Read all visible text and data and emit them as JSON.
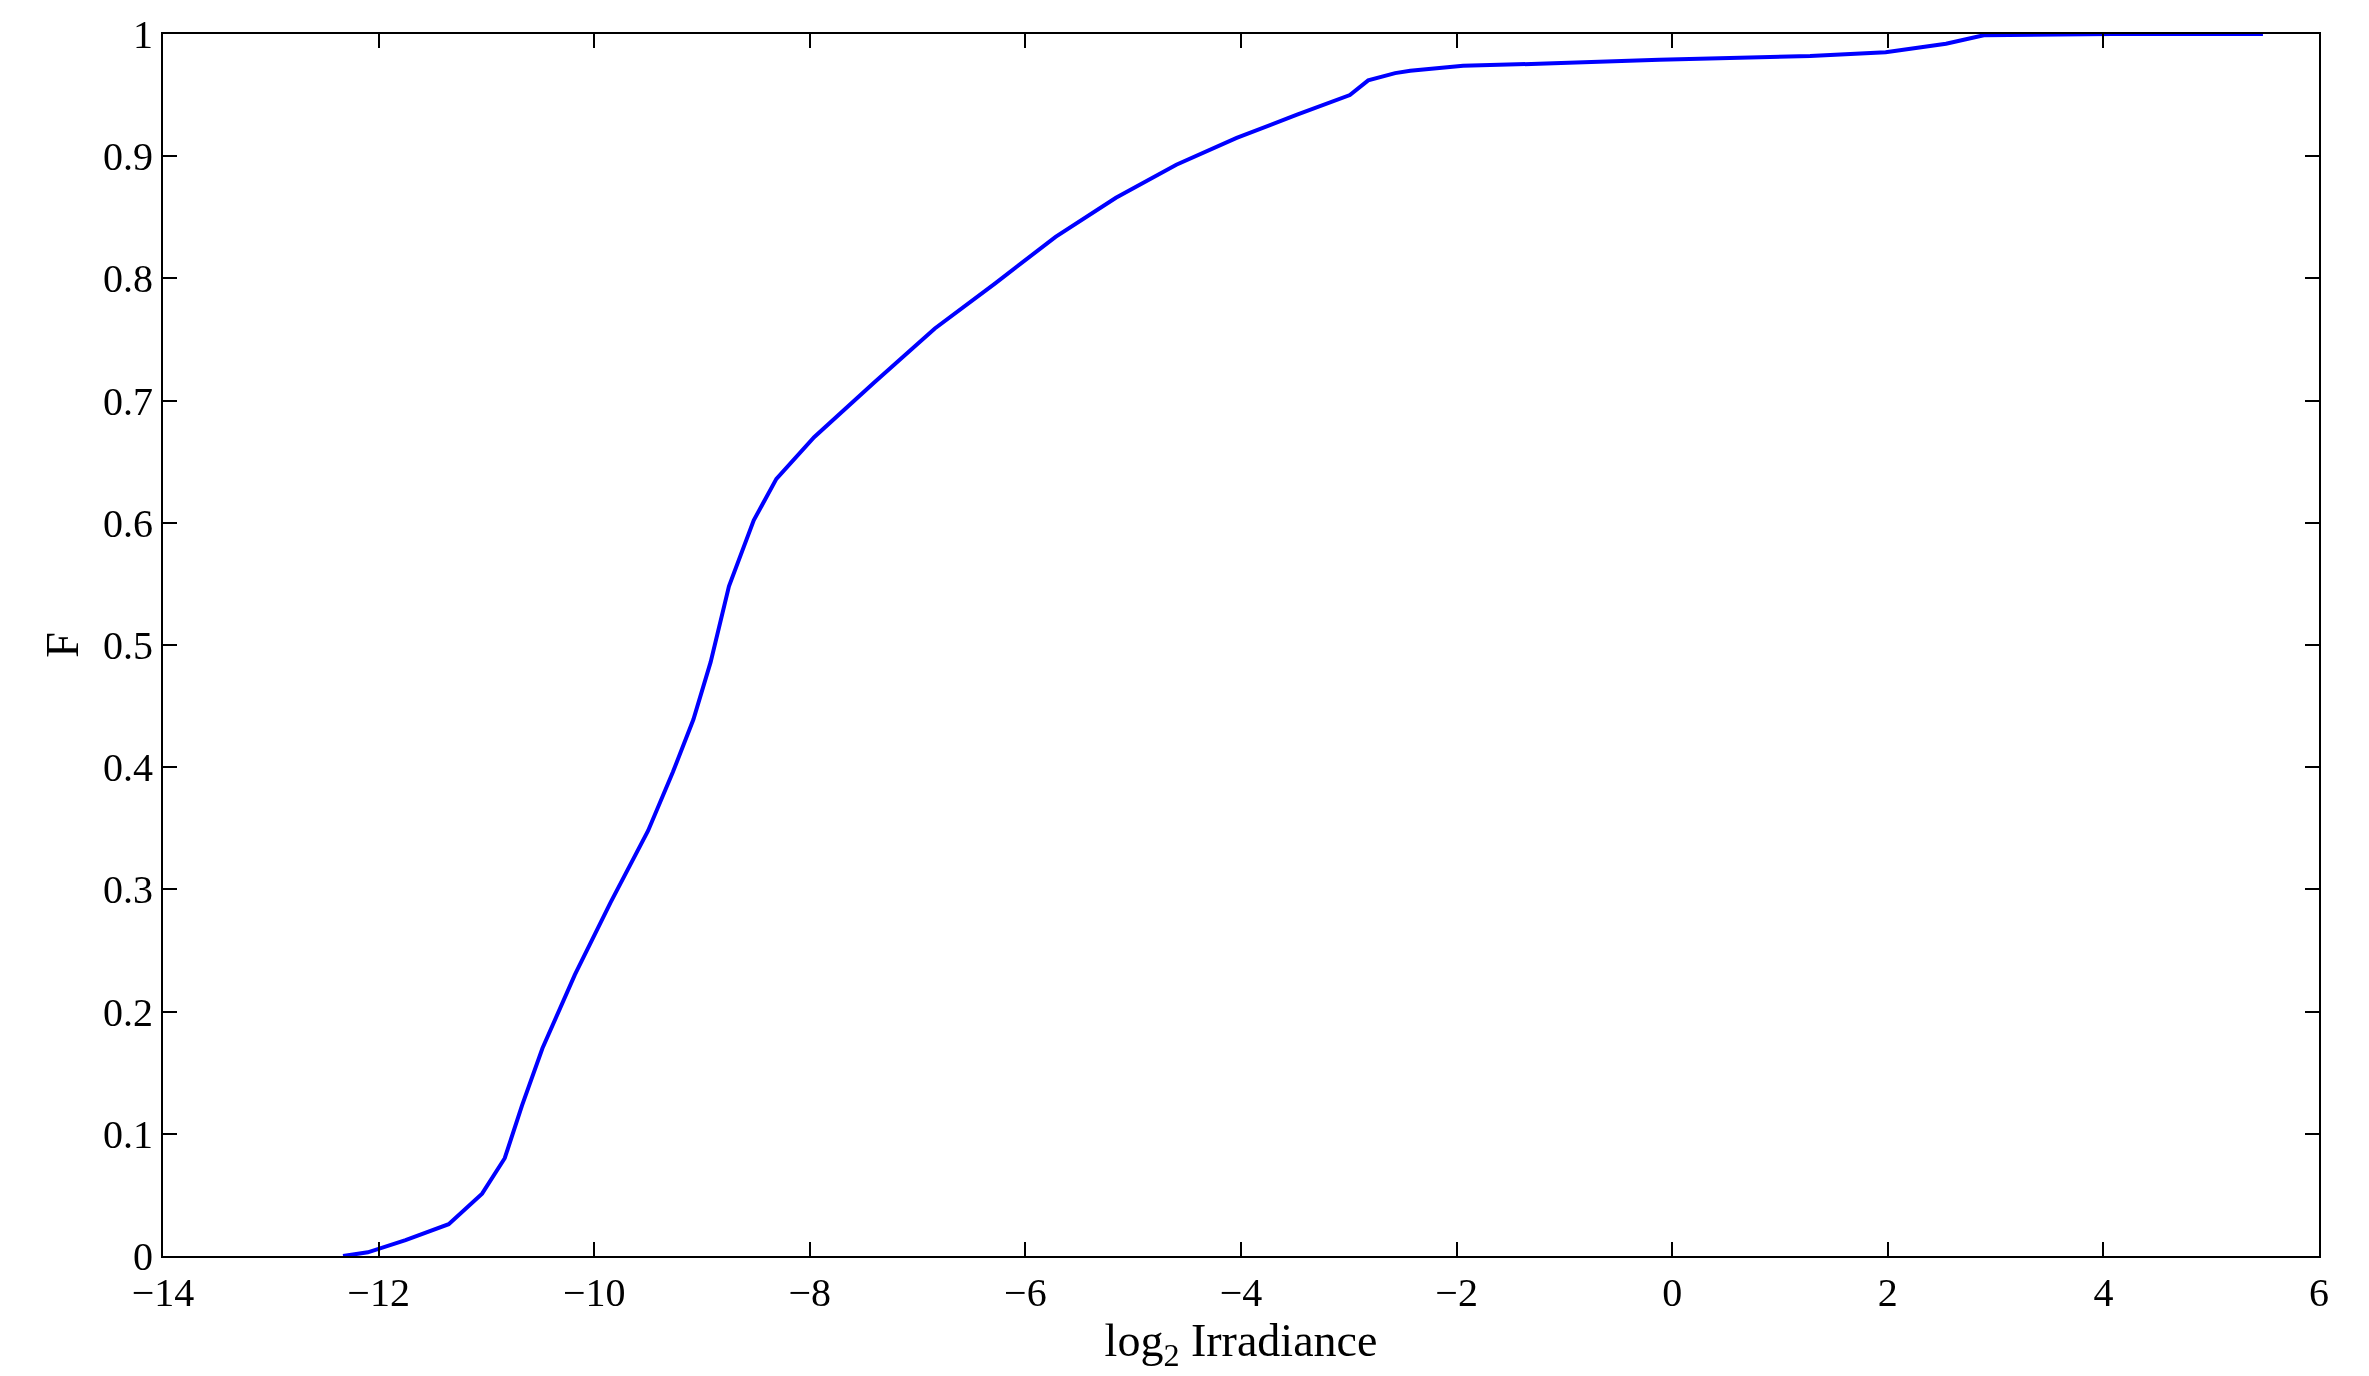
{
  "chart_data": {
    "type": "line",
    "xlabel": "log$_{2}$ Irradiance",
    "ylabel": "F",
    "x": [
      -12.33,
      -12.1,
      -11.75,
      -11.35,
      -11.04,
      -10.83,
      -10.67,
      -10.48,
      -10.18,
      -9.85,
      -9.5,
      -9.27,
      -9.08,
      -8.92,
      -8.75,
      -8.52,
      -8.31,
      -7.96,
      -7.4,
      -6.84,
      -6.28,
      -5.72,
      -5.16,
      -4.6,
      -4.04,
      -3.48,
      -2.99,
      -2.82,
      -2.57,
      -2.43,
      -1.94,
      -1.1,
      -0.12,
      1.28,
      1.98,
      2.54,
      2.89,
      4.08,
      5.48
    ],
    "series": [
      {
        "color": "#0000ff",
        "values": [
          0,
          0.003,
          0.013,
          0.026,
          0.051,
          0.08,
          0.123,
          0.17,
          0.23,
          0.289,
          0.348,
          0.396,
          0.439,
          0.486,
          0.548,
          0.602,
          0.636,
          0.67,
          0.715,
          0.759,
          0.796,
          0.834,
          0.866,
          0.893,
          0.915,
          0.934,
          0.95,
          0.962,
          0.968,
          0.97,
          0.974,
          0.976,
          0.979,
          0.982,
          0.985,
          0.992,
          0.999,
          1.0,
          1.0
        ]
      }
    ],
    "xlim": [
      -14,
      6
    ],
    "xticks": [
      {
        "value": -14,
        "label": "−14"
      },
      {
        "value": -12,
        "label": "−12"
      },
      {
        "value": -10,
        "label": "−10"
      },
      {
        "value": -8,
        "label": "−8"
      },
      {
        "value": -6,
        "label": "−6"
      },
      {
        "value": -4,
        "label": "−4"
      },
      {
        "value": -2,
        "label": "−2"
      },
      0,
      2,
      4,
      6
    ],
    "ylim": [
      0,
      1
    ],
    "yticks": [
      0,
      0.1,
      0.2,
      0.3,
      0.4,
      0.5,
      0.6,
      0.7,
      0.8,
      0.9,
      1
    ],
    "marker": "none",
    "line_style": "solid"
  }
}
